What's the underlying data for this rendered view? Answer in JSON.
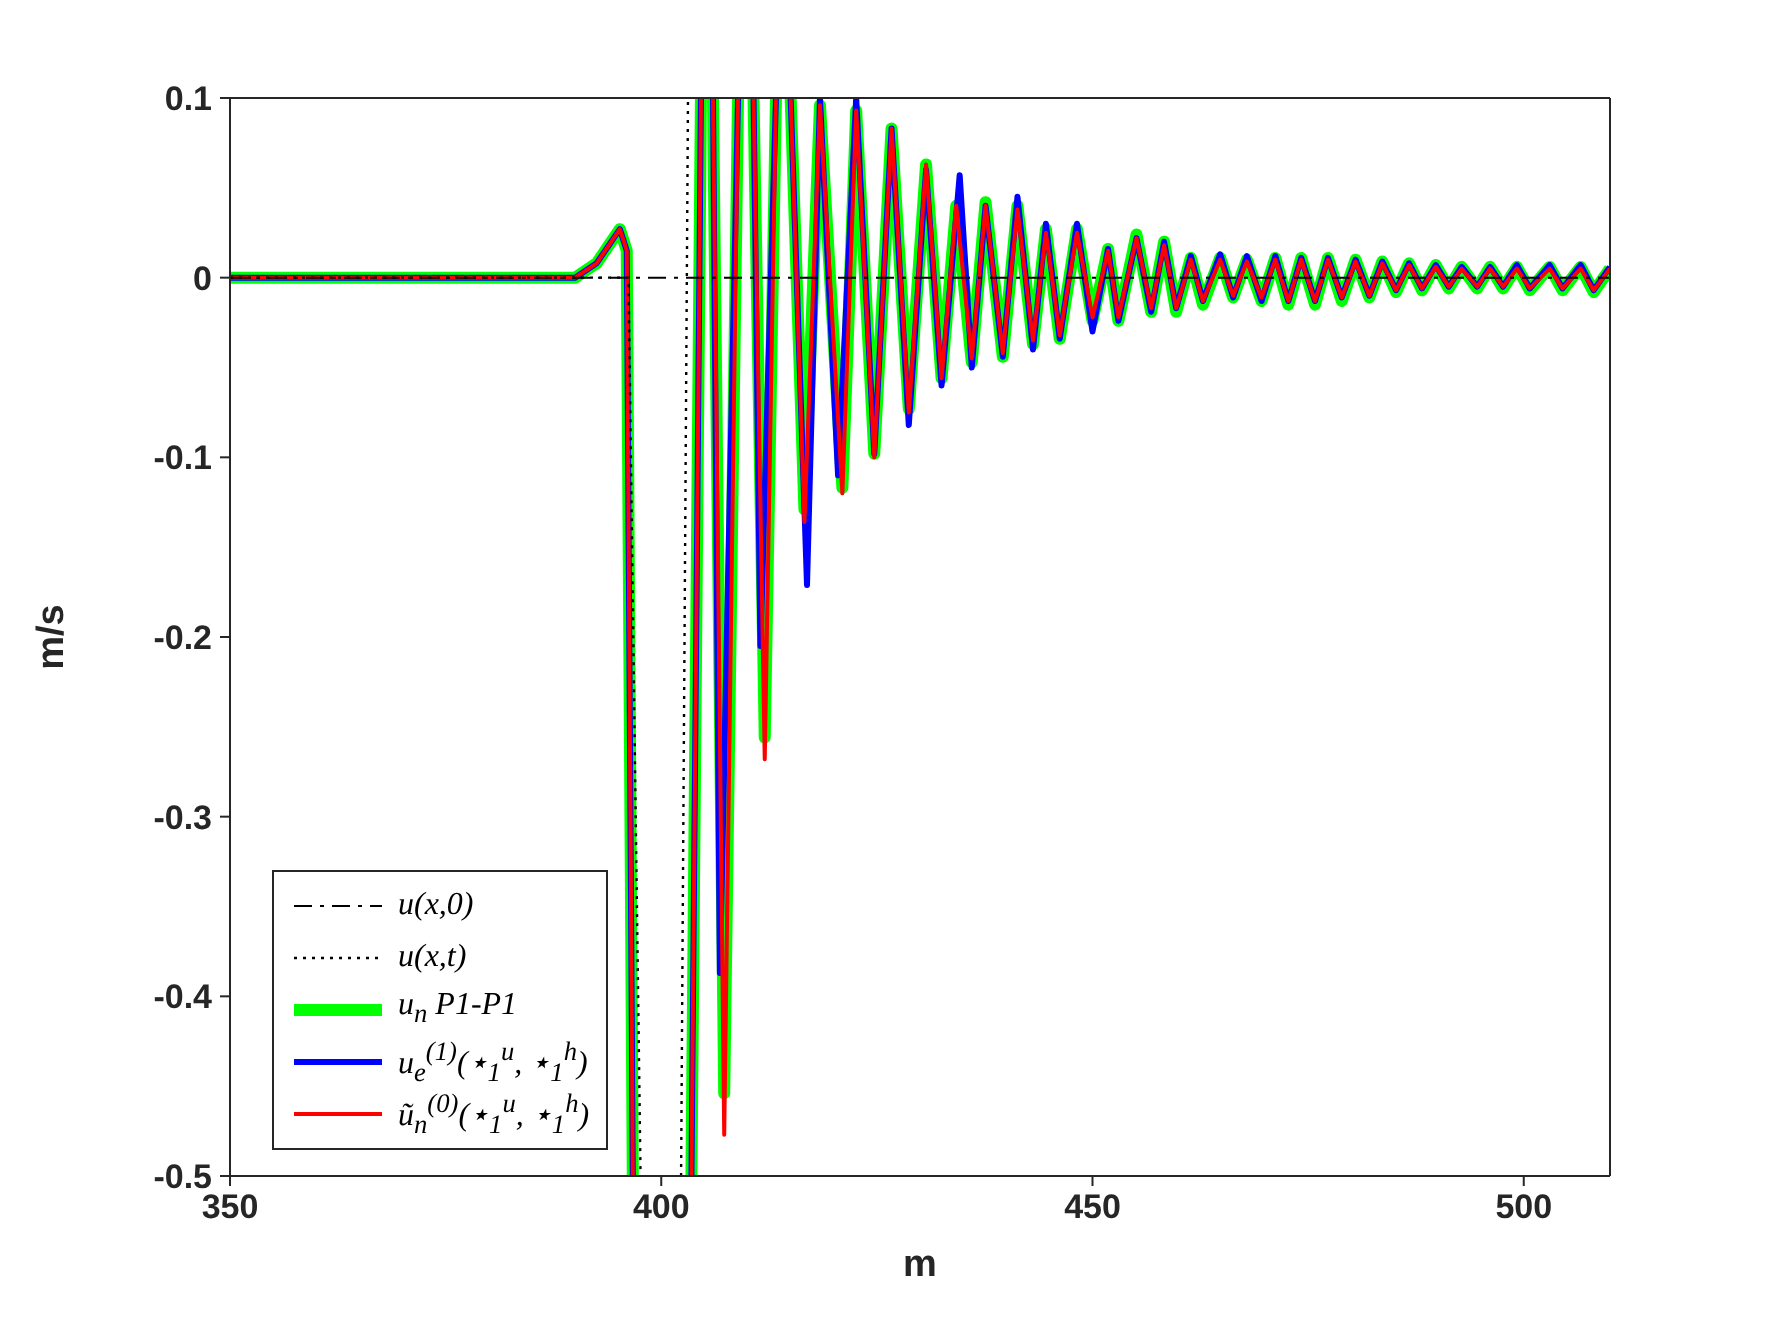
{
  "chart_data": {
    "type": "line",
    "xlabel": "m",
    "ylabel": "m/s",
    "xlim": [
      350,
      510
    ],
    "ylim": [
      -0.5,
      0.1
    ],
    "xticks": [
      350,
      400,
      450,
      500
    ],
    "yticks": [
      -0.5,
      -0.4,
      -0.3,
      -0.2,
      -0.1,
      0,
      0.1
    ],
    "grid": false,
    "legend": "bottom left",
    "marker": "none",
    "series": [
      {
        "name": "u(x,0)",
        "color": "#000000",
        "line_style": "dashed",
        "x": [
          350,
          510
        ],
        "values": [
          0,
          0
        ]
      },
      {
        "name": "u(x,t)",
        "color": "#000000",
        "line_style": "dotted",
        "x": [
          350,
          396.2,
          397.6,
          400,
          402.3,
          403.1
        ],
        "values": [
          0,
          0,
          -0.5,
          null,
          -0.5,
          0.1
        ]
      },
      {
        "name": "u$_{n}$ P1-P1",
        "color": "#00ff00",
        "line_style": "solid",
        "x": [
          350,
          390,
          392.5,
          395.2,
          396.0,
          396.7,
          400,
          403.5,
          404.6,
          405,
          406.0,
          407.3,
          408.9,
          409.5,
          410.7,
          412.0,
          413.3,
          414,
          415.0,
          416.6,
          418.4,
          421.0,
          422.6,
          424.7,
          426.7,
          428.7,
          430.7,
          432.5,
          434.2,
          436.0,
          437.6,
          439.6,
          441.3,
          443.1,
          444.6,
          446.2,
          448.2,
          450.0,
          451.8,
          453.0,
          455.1,
          456.8,
          458.3,
          459.7,
          461.4,
          462.8,
          464.8,
          466.3,
          467.9,
          469.6,
          471.2,
          472.7,
          474.2,
          475.8,
          477.3,
          478.9,
          480.5,
          482.1,
          483.6,
          485.2,
          486.7,
          488.2,
          489.8,
          491.3,
          492.8,
          494.6,
          496.1,
          497.6,
          499.2,
          500.7,
          503.0,
          504.5,
          506.6,
          508.1,
          510
        ],
        "values": [
          0,
          0,
          0.008,
          0.027,
          0.015,
          -0.5,
          null,
          -0.5,
          0.1,
          null,
          0.1,
          -0.454,
          0.1,
          null,
          0.1,
          -0.256,
          0.1,
          null,
          0.1,
          -0.129,
          0.096,
          -0.117,
          0.093,
          -0.098,
          0.083,
          -0.073,
          0.063,
          -0.056,
          0.04,
          -0.047,
          0.042,
          -0.044,
          0.04,
          -0.037,
          0.027,
          -0.034,
          0.027,
          -0.024,
          0.016,
          -0.024,
          0.024,
          -0.019,
          0.02,
          -0.019,
          0.011,
          -0.015,
          0.011,
          -0.011,
          0.01,
          -0.013,
          0.011,
          -0.015,
          0.011,
          -0.015,
          0.011,
          -0.013,
          0.01,
          -0.011,
          0.009,
          -0.008,
          0.008,
          -0.007,
          0.007,
          -0.006,
          0.006,
          -0.006,
          0.006,
          -0.006,
          0.006,
          -0.007,
          0.006,
          -0.007,
          0.006,
          -0.008,
          0.005
        ]
      },
      {
        "name": "u$_{e}$$^{(1)}$(⋆$_{1}$$^{u}$, ⋆$_{1}$$^{h}$)",
        "color": "#0000ff",
        "line_style": "solid",
        "x": [
          350,
          390,
          392.5,
          395.2,
          396.0,
          396.7,
          400,
          403.5,
          404.6,
          405,
          406.0,
          406.8,
          408.9,
          409.5,
          410.7,
          411.5,
          413.3,
          414,
          415.0,
          416.9,
          418.4,
          420.5,
          422.6,
          424.7,
          426.7,
          428.7,
          430.7,
          432.5,
          434.6,
          436.0,
          437.6,
          439.6,
          441.3,
          443.1,
          444.6,
          446.2,
          448.2,
          450.0,
          451.8,
          453.0,
          455.1,
          456.8,
          458.3,
          459.7,
          461.4,
          462.8,
          464.8,
          466.3,
          467.9,
          469.6,
          471.2,
          472.7,
          474.2,
          475.8,
          477.3,
          478.9,
          480.5,
          482.1,
          483.6,
          485.2,
          486.7,
          488.2,
          489.8,
          491.3,
          492.8,
          494.6,
          496.1,
          497.6,
          499.2,
          500.7,
          503.0,
          504.5,
          506.6,
          508.1,
          510
        ],
        "values": [
          0,
          0,
          0.008,
          0.027,
          0.015,
          -0.5,
          null,
          -0.5,
          0.1,
          null,
          0.1,
          -0.387,
          0.1,
          null,
          0.1,
          -0.205,
          0.1,
          null,
          0.1,
          -0.171,
          0.1,
          -0.11,
          0.1,
          -0.098,
          0.083,
          -0.082,
          0.06,
          -0.06,
          0.057,
          -0.05,
          0.04,
          -0.044,
          0.045,
          -0.04,
          0.03,
          -0.034,
          0.03,
          -0.03,
          0.016,
          -0.024,
          0.022,
          -0.019,
          0.02,
          -0.017,
          0.012,
          -0.013,
          0.013,
          -0.011,
          0.012,
          -0.013,
          0.012,
          -0.013,
          0.011,
          -0.013,
          0.011,
          -0.011,
          0.01,
          -0.01,
          0.009,
          -0.007,
          0.008,
          -0.006,
          0.007,
          -0.005,
          0.006,
          -0.005,
          0.006,
          -0.005,
          0.007,
          -0.006,
          0.007,
          -0.006,
          0.007,
          -0.007,
          0.006
        ]
      },
      {
        "name": "ũ$_{n}$$^{(0)}$(⋆$_{1}$$^{u}$, ⋆$_{1}$$^{h}$)",
        "color": "#ff0000",
        "line_style": "solid",
        "x": [
          350,
          390,
          392.5,
          395.2,
          396.0,
          396.7,
          400,
          403.5,
          404.6,
          405,
          406.0,
          407.3,
          408.9,
          409.5,
          410.7,
          412.0,
          413.3,
          414,
          415.0,
          416.6,
          418.4,
          421.0,
          422.6,
          424.7,
          426.7,
          428.7,
          430.7,
          432.5,
          434.2,
          436.0,
          437.6,
          439.6,
          441.3,
          443.1,
          444.6,
          446.2,
          448.2,
          450.0,
          451.8,
          453.0,
          455.1,
          456.8,
          458.3,
          459.7,
          461.4,
          462.8,
          464.8,
          466.3,
          467.9,
          469.6,
          471.2,
          472.7,
          474.2,
          475.8,
          477.3,
          478.9,
          480.5,
          482.1,
          483.6,
          485.2,
          486.7,
          488.2,
          489.8,
          491.3,
          492.8,
          494.6,
          496.1,
          497.6,
          499.2,
          500.7,
          503.0,
          504.5,
          506.6,
          508.1,
          510
        ],
        "values": [
          0,
          0,
          0.008,
          0.027,
          0.015,
          -0.5,
          null,
          -0.5,
          0.1,
          null,
          0.1,
          -0.477,
          0.1,
          null,
          0.1,
          -0.268,
          0.1,
          null,
          0.1,
          -0.136,
          0.096,
          -0.12,
          0.093,
          -0.1,
          0.083,
          -0.075,
          0.063,
          -0.056,
          0.04,
          -0.045,
          0.04,
          -0.042,
          0.038,
          -0.035,
          0.025,
          -0.032,
          0.025,
          -0.022,
          0.015,
          -0.022,
          0.022,
          -0.017,
          0.018,
          -0.017,
          0.01,
          -0.013,
          0.01,
          -0.01,
          0.009,
          -0.011,
          0.01,
          -0.013,
          0.01,
          -0.013,
          0.01,
          -0.011,
          0.009,
          -0.01,
          0.008,
          -0.007,
          0.007,
          -0.006,
          0.006,
          -0.005,
          0.005,
          -0.005,
          0.005,
          -0.005,
          0.005,
          -0.006,
          0.005,
          -0.006,
          0.005,
          -0.007,
          0.005
        ]
      }
    ]
  }
}
